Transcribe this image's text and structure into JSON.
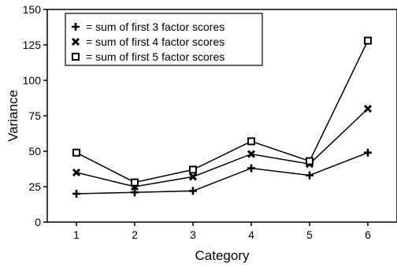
{
  "chart_data": {
    "type": "line",
    "xlabel": "Category",
    "ylabel": "Variance",
    "x": [
      1,
      2,
      3,
      4,
      5,
      6
    ],
    "xlim": [
      0.5,
      6.5
    ],
    "ylim": [
      0,
      150
    ],
    "yticks": [
      0,
      25,
      50,
      75,
      100,
      125,
      150
    ],
    "xticks": [
      1,
      2,
      3,
      4,
      5,
      6
    ],
    "grid": false,
    "legend_position": "top-left",
    "series": [
      {
        "name": "= sum of first 3 factor scores",
        "marker": "plus",
        "values": [
          20,
          21,
          22,
          38,
          33,
          49
        ]
      },
      {
        "name": "= sum of first 4 factor scores",
        "marker": "x",
        "values": [
          35,
          25,
          32,
          48,
          41,
          80
        ]
      },
      {
        "name": "= sum of first 5 factor scores",
        "marker": "square",
        "values": [
          49,
          28,
          37,
          57,
          43,
          128
        ]
      }
    ]
  }
}
